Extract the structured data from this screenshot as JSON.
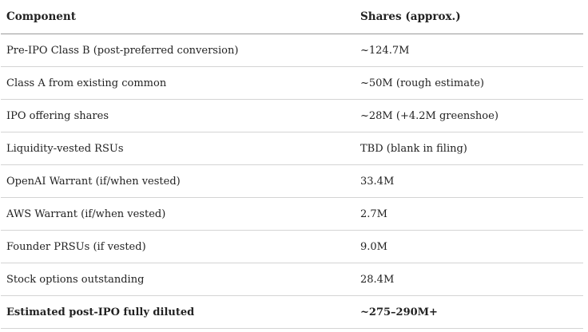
{
  "table": {
    "headers": [
      "Component",
      "Shares (approx.)"
    ],
    "rows": [
      [
        "Pre-IPO Class B (post-preferred conversion)",
        "~124.7M"
      ],
      [
        "Class A from existing common",
        "~50M (rough estimate)"
      ],
      [
        "IPO offering shares",
        "~28M (+4.2M greenshoe)"
      ],
      [
        "Liquidity-vested RSUs",
        "TBD (blank in filing)"
      ],
      [
        "OpenAI Warrant (if/when vested)",
        "33.4M"
      ],
      [
        "AWS Warrant (if/when vested)",
        "2.7M"
      ],
      [
        "Founder PRSUs (if vested)",
        "9.0M"
      ],
      [
        "Stock options outstanding",
        "28.4M"
      ],
      [
        "Estimated post-IPO fully diluted",
        "~275–290M+"
      ]
    ]
  }
}
